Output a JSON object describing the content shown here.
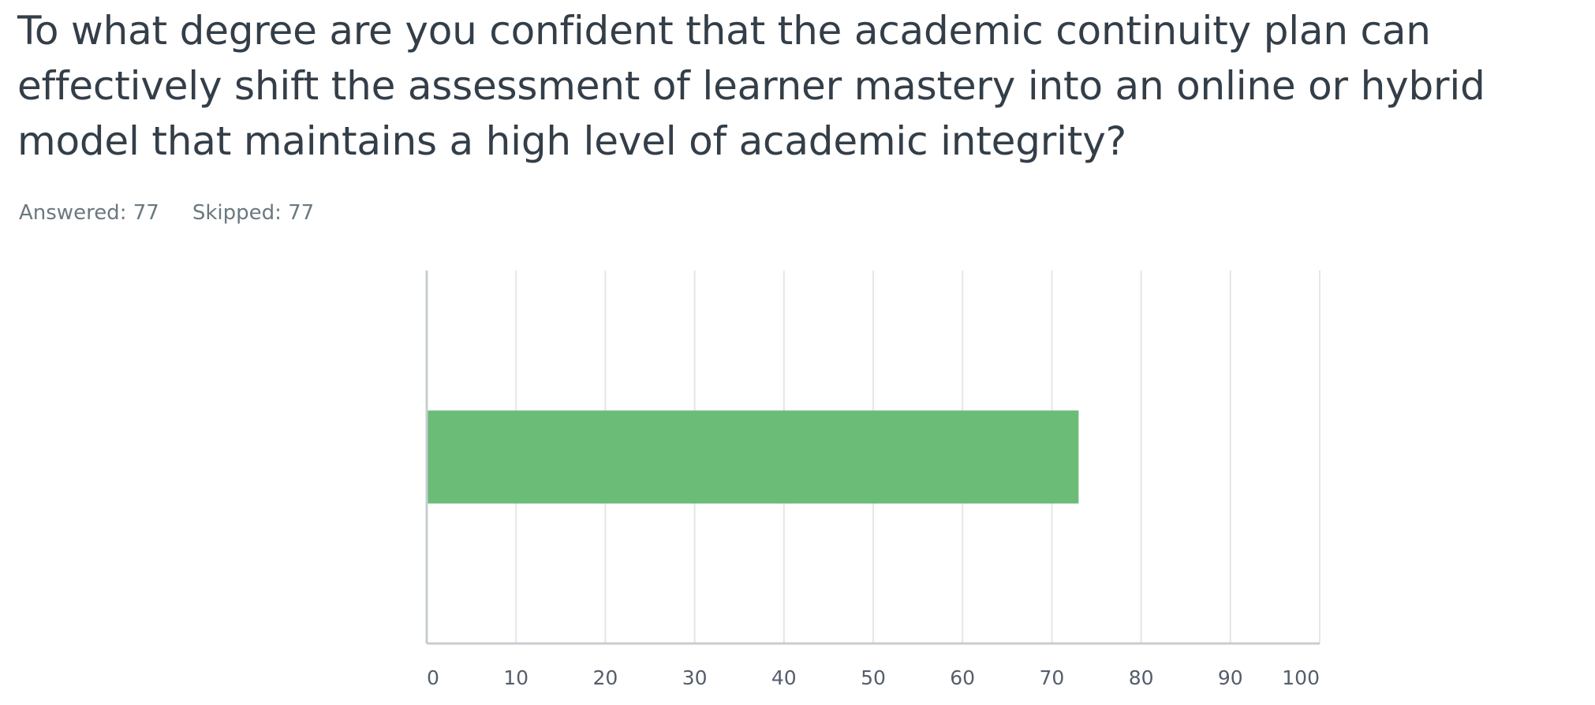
{
  "question": {
    "text": "To what degree are you confident that the academic continuity plan can effectively shift the assessment of learner mastery into an online or hybrid model that maintains a high level of academic integrity?"
  },
  "stats": {
    "answered": "Answered: 77",
    "skipped": "Skipped: 77"
  },
  "colors": {
    "bar": "#6bbc76",
    "grid": "#e4e6e8",
    "axis": "#c8ccd0",
    "text": "#333e48",
    "muted": "#6b787f"
  },
  "chart_data": {
    "type": "bar",
    "orientation": "horizontal",
    "categories": [
      ""
    ],
    "values": [
      73
    ],
    "title": "",
    "xlabel": "",
    "ylabel": "",
    "xlim": [
      0,
      100
    ],
    "xticks": [
      0,
      10,
      20,
      30,
      40,
      50,
      60,
      70,
      80,
      90,
      100
    ],
    "grid": true,
    "legend": "none"
  }
}
